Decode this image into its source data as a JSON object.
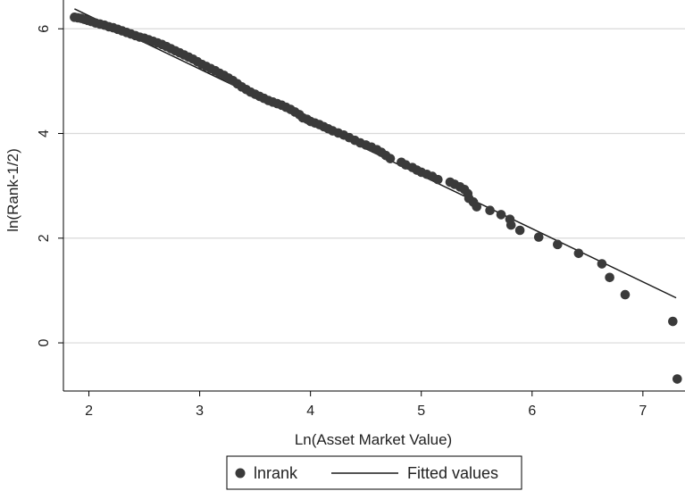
{
  "chart_data": {
    "type": "scatter",
    "xlabel": "Ln(Asset Market Value)",
    "ylabel": "ln(Rank-1/2)",
    "xlim": [
      1.77,
      7.38
    ],
    "ylim": [
      -0.92,
      6.55
    ],
    "x_ticks": [
      2,
      3,
      4,
      5,
      6,
      7
    ],
    "y_ticks": [
      0,
      2,
      4,
      6
    ],
    "grid": "horizontal",
    "legend_position": "bottom",
    "colors": {
      "points": "#3a3a3a",
      "line": "#1a1a1a",
      "grid": "#d9d9d9",
      "frame": "#000000"
    },
    "series": [
      {
        "name": "lnrank",
        "kind": "scatter",
        "points": [
          [
            1.87,
            6.22
          ],
          [
            1.9,
            6.21
          ],
          [
            1.93,
            6.2
          ],
          [
            1.96,
            6.18
          ],
          [
            1.99,
            6.16
          ],
          [
            2.02,
            6.14
          ],
          [
            2.06,
            6.11
          ],
          [
            2.1,
            6.09
          ],
          [
            2.14,
            6.07
          ],
          [
            2.18,
            6.04
          ],
          [
            2.22,
            6.02
          ],
          [
            2.26,
            5.99
          ],
          [
            2.3,
            5.96
          ],
          [
            2.34,
            5.93
          ],
          [
            2.38,
            5.9
          ],
          [
            2.42,
            5.87
          ],
          [
            2.46,
            5.84
          ],
          [
            2.5,
            5.82
          ],
          [
            2.54,
            5.79
          ],
          [
            2.58,
            5.76
          ],
          [
            2.62,
            5.73
          ],
          [
            2.66,
            5.7
          ],
          [
            2.7,
            5.66
          ],
          [
            2.74,
            5.62
          ],
          [
            2.78,
            5.58
          ],
          [
            2.82,
            5.54
          ],
          [
            2.86,
            5.5
          ],
          [
            2.9,
            5.46
          ],
          [
            2.94,
            5.42
          ],
          [
            2.98,
            5.37
          ],
          [
            3.02,
            5.32
          ],
          [
            3.06,
            5.28
          ],
          [
            3.1,
            5.24
          ],
          [
            3.14,
            5.2
          ],
          [
            3.18,
            5.15
          ],
          [
            3.22,
            5.11
          ],
          [
            3.26,
            5.06
          ],
          [
            3.3,
            5.01
          ],
          [
            3.34,
            4.95
          ],
          [
            3.38,
            4.89
          ],
          [
            3.42,
            4.84
          ],
          [
            3.46,
            4.79
          ],
          [
            3.5,
            4.75
          ],
          [
            3.54,
            4.71
          ],
          [
            3.58,
            4.67
          ],
          [
            3.62,
            4.63
          ],
          [
            3.66,
            4.6
          ],
          [
            3.7,
            4.57
          ],
          [
            3.74,
            4.54
          ],
          [
            3.78,
            4.5
          ],
          [
            3.82,
            4.46
          ],
          [
            3.86,
            4.41
          ],
          [
            3.9,
            4.36
          ],
          [
            3.93,
            4.3
          ],
          [
            3.97,
            4.27
          ],
          [
            4.0,
            4.23
          ],
          [
            4.04,
            4.2
          ],
          [
            4.08,
            4.17
          ],
          [
            4.12,
            4.13
          ],
          [
            4.16,
            4.09
          ],
          [
            4.2,
            4.05
          ],
          [
            4.25,
            4.01
          ],
          [
            4.3,
            3.97
          ],
          [
            4.35,
            3.92
          ],
          [
            4.4,
            3.87
          ],
          [
            4.45,
            3.82
          ],
          [
            4.5,
            3.78
          ],
          [
            4.55,
            3.74
          ],
          [
            4.6,
            3.69
          ],
          [
            4.64,
            3.64
          ],
          [
            4.68,
            3.58
          ],
          [
            4.72,
            3.52
          ],
          [
            4.82,
            3.45
          ],
          [
            4.86,
            3.4
          ],
          [
            4.92,
            3.35
          ],
          [
            4.96,
            3.3
          ],
          [
            5.0,
            3.26
          ],
          [
            5.05,
            3.22
          ],
          [
            5.1,
            3.18
          ],
          [
            5.15,
            3.12
          ],
          [
            5.26,
            3.07
          ],
          [
            5.3,
            3.03
          ],
          [
            5.35,
            2.98
          ],
          [
            5.39,
            2.93
          ],
          [
            5.42,
            2.85
          ],
          [
            5.43,
            2.76
          ],
          [
            5.47,
            2.69
          ],
          [
            5.5,
            2.6
          ],
          [
            5.62,
            2.53
          ],
          [
            5.72,
            2.45
          ],
          [
            5.8,
            2.36
          ],
          [
            5.81,
            2.25
          ],
          [
            5.89,
            2.15
          ],
          [
            6.06,
            2.02
          ],
          [
            6.23,
            1.88
          ],
          [
            6.42,
            1.71
          ],
          [
            6.63,
            1.51
          ],
          [
            6.7,
            1.25
          ],
          [
            6.84,
            0.92
          ],
          [
            7.27,
            0.41
          ],
          [
            7.31,
            -0.69
          ]
        ]
      },
      {
        "name": "Fitted values",
        "kind": "line",
        "points": [
          [
            1.87,
            6.38
          ],
          [
            7.3,
            0.86
          ]
        ]
      }
    ]
  }
}
